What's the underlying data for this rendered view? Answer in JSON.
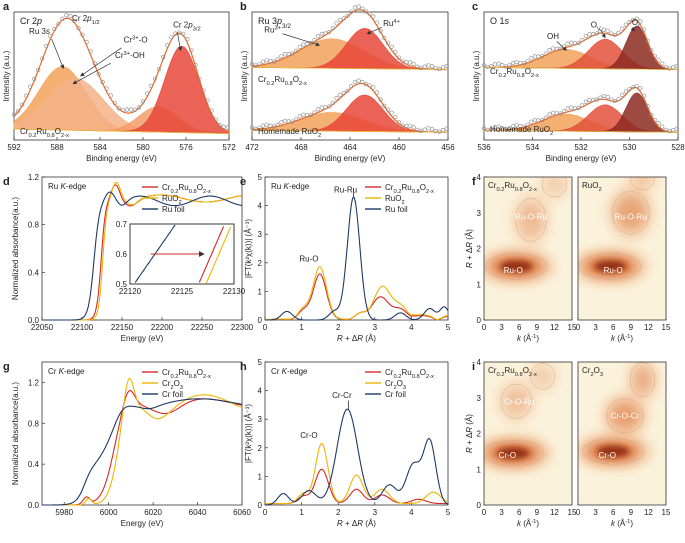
{
  "chart_data": [
    {
      "id": "a",
      "type": "line",
      "title": "Cr 2p",
      "xlabel": "Binding energy (eV)",
      "ylabel": "Intensity (a.u.)",
      "xlim": [
        592,
        572
      ],
      "xticks": [
        "592",
        "588",
        "584",
        "580",
        "576",
        "572"
      ],
      "xtickvals": [
        592,
        588,
        584,
        580,
        576,
        572
      ],
      "ylim": [
        0,
        1
      ],
      "sample": "Cr0.2Ru0.8O2-x",
      "labels": [
        "Ru 3s",
        "Cr 2p1/2",
        "Cr3+-O",
        "Cr3+-OH",
        "Cr 2p3/2"
      ],
      "peaks": [
        {
          "name": "Ru 3s",
          "center": 587.5,
          "height": 0.55,
          "width": 2.2,
          "color": "#f2a25a"
        },
        {
          "name": "Cr 2p1/2",
          "center": 586.3,
          "height": 0.45,
          "width": 2.6,
          "color": "#f4b28a"
        },
        {
          "name": "Cr3+-OH",
          "center": 578.6,
          "height": 0.22,
          "width": 1.8,
          "color": "#f59e6b"
        },
        {
          "name": "Cr 2p3/2",
          "center": 576.4,
          "height": 0.75,
          "width": 1.6,
          "color": "#e8473a"
        }
      ]
    },
    {
      "id": "b",
      "type": "line",
      "title": "Ru 3p3/2",
      "xlabel": "Binding energy (eV)",
      "ylabel": "Intensity (a.u.)",
      "xlim": [
        472,
        456
      ],
      "xticks": [
        "472",
        "468",
        "464",
        "460",
        "456"
      ],
      "xtickvals": [
        472,
        468,
        464,
        460,
        456
      ],
      "labels": [
        "Ru3+",
        "Ru4+"
      ],
      "samples": [
        "Cr0.2Ru0.8O2-x",
        "Homemade RuO2"
      ],
      "peaks": [
        {
          "name": "Ru3+",
          "center": 465.5,
          "height": 0.55,
          "width": 2.6,
          "color": "#f2a25a"
        },
        {
          "name": "Ru4+",
          "center": 462.8,
          "height": 0.75,
          "width": 1.5,
          "color": "#e8473a"
        }
      ]
    },
    {
      "id": "c",
      "type": "line",
      "title": "O 1s",
      "xlabel": "Binding energy (eV)",
      "ylabel": "Intensity (a.u.)",
      "xlim": [
        536,
        528
      ],
      "xticks": [
        "536",
        "534",
        "532",
        "530",
        "528"
      ],
      "xtickvals": [
        536,
        534,
        532,
        530,
        528
      ],
      "labels": [
        "OH",
        "OV",
        "OL"
      ],
      "samples": [
        "Cr0.2Ru0.8O2-x",
        "Homemade RuO2"
      ],
      "peaks": [
        {
          "name": "OH",
          "center": 532.6,
          "height": 0.35,
          "width": 1.0,
          "color": "#f2a25a"
        },
        {
          "name": "OV",
          "center": 531.0,
          "height": 0.55,
          "width": 0.7,
          "color": "#e2513c"
        },
        {
          "name": "OL",
          "center": 529.7,
          "height": 0.8,
          "width": 0.45,
          "color": "#8c2a22"
        }
      ]
    },
    {
      "id": "d",
      "type": "line",
      "title": "Ru K-edge",
      "xlabel": "Energy (eV)",
      "ylabel": "Normalized absorbance(a.u.)",
      "xlim": [
        22050,
        22300
      ],
      "xticks": [
        "22050",
        "22100",
        "22150",
        "22200",
        "22250",
        "22300"
      ],
      "xtickvals": [
        22050,
        22100,
        22150,
        22200,
        22250,
        22300
      ],
      "ylim": [
        0,
        1.2
      ],
      "yticks": [
        "0.0",
        "0.4",
        "0.8",
        "1.2"
      ],
      "ytickvals": [
        0,
        0.4,
        0.8,
        1.2
      ],
      "series": [
        {
          "name": "Cr0.2Ru0.8O2-x",
          "color": "#d42a2a"
        },
        {
          "name": "RuO2",
          "color": "#f0b400"
        },
        {
          "name": "Ru foil",
          "color": "#1f3a66"
        }
      ],
      "inset": {
        "xlim": [
          22120,
          22130
        ],
        "ylim": [
          0.5,
          0.7
        ],
        "xticks": [
          "22120",
          "22125",
          "22130"
        ],
        "xtickvals": [
          22120,
          22125,
          22130
        ],
        "yticks": [
          "0.5",
          "0.6",
          "0.7"
        ],
        "ytickvals": [
          0.5,
          0.6,
          0.7
        ]
      }
    },
    {
      "id": "e",
      "type": "line",
      "title": "Ru K-edge",
      "xlabel": "R + ΔR (Å)",
      "ylabel": "|FT(k²χ(k))| (Å⁻³)",
      "xlim": [
        0,
        5
      ],
      "xticks": [
        "0",
        "1",
        "2",
        "3",
        "4",
        "5"
      ],
      "xtickvals": [
        0,
        1,
        2,
        3,
        4,
        5
      ],
      "ylim": [
        0,
        5
      ],
      "yticks": [
        "0",
        "1",
        "2",
        "3",
        "4",
        "5"
      ],
      "ytickvals": [
        0,
        1,
        2,
        3,
        4,
        5
      ],
      "labels": [
        "Ru-O",
        "Ru-Ru"
      ],
      "series": [
        {
          "name": "Cr0.2Ru0.8O2-x",
          "color": "#d42a2a"
        },
        {
          "name": "RuO2",
          "color": "#f0b400"
        },
        {
          "name": "Ru foil",
          "color": "#1f3a66"
        }
      ]
    },
    {
      "id": "f",
      "type": "heatmap",
      "xlabel": "k (Å⁻¹)",
      "ylabel": "R + ΔR (Å)",
      "xlim": [
        0,
        15
      ],
      "xticks": [
        "0",
        "3",
        "6",
        "9",
        "12",
        "15"
      ],
      "xtickvals": [
        0,
        3,
        6,
        9,
        12,
        15
      ],
      "ylim": [
        0,
        4
      ],
      "yticks": [
        "0",
        "1",
        "2",
        "3",
        "4"
      ],
      "ytickvals": [
        0,
        1,
        2,
        3,
        4
      ],
      "panels": [
        {
          "title": "Cr0.2Ru0.8O2-x",
          "labels": [
            {
              "text": "Ru-O-Ru",
              "k": 8,
              "r": 2.9
            },
            {
              "text": "Ru-O",
              "k": 5,
              "r": 1.4
            }
          ],
          "blobs": [
            {
              "k": 5.5,
              "r": 1.5,
              "sk": 5,
              "sr": 0.3,
              "a": 1.0
            },
            {
              "k": 8,
              "r": 2.8,
              "sk": 2.5,
              "sr": 0.5,
              "a": 0.35
            },
            {
              "k": 12,
              "r": 3.8,
              "sk": 2,
              "sr": 0.3,
              "a": 0.2
            }
          ]
        },
        {
          "title": "RuO2",
          "labels": [
            {
              "text": "Ru-O-Ru",
              "k": 9,
              "r": 2.9
            },
            {
              "text": "Ru-O",
              "k": 6,
              "r": 1.4
            }
          ],
          "blobs": [
            {
              "k": 5.5,
              "r": 1.5,
              "sk": 5,
              "sr": 0.3,
              "a": 1.0
            },
            {
              "k": 9,
              "r": 3.0,
              "sk": 3,
              "sr": 0.5,
              "a": 0.55
            },
            {
              "k": 11,
              "r": 4.0,
              "sk": 2,
              "sr": 0.3,
              "a": 0.25
            }
          ]
        }
      ]
    },
    {
      "id": "g",
      "type": "line",
      "title": "Cr K-edge",
      "xlabel": "Energy (eV)",
      "ylabel": "Normalized absorbance(a.u.)",
      "xlim": [
        5970,
        6060
      ],
      "xticks": [
        "5980",
        "6000",
        "6020",
        "6040",
        "6060"
      ],
      "xtickvals": [
        5980,
        6000,
        6020,
        6040,
        6060
      ],
      "ylim": [
        0,
        1.4
      ],
      "yticks": [
        "0.0",
        "0.4",
        "0.8",
        "1.2"
      ],
      "ytickvals": [
        0,
        0.4,
        0.8,
        1.2
      ],
      "series": [
        {
          "name": "Cr0.2Ru0.8O2-x",
          "color": "#d42a2a"
        },
        {
          "name": "Cr2O3",
          "color": "#f0b400"
        },
        {
          "name": "Cr foil",
          "color": "#1f3a66"
        }
      ]
    },
    {
      "id": "h",
      "type": "line",
      "title": "Cr K-edge",
      "xlabel": "R + ΔR (Å)",
      "ylabel": "|FT(k²χ(k))| (Å⁻³)",
      "xlim": [
        0,
        5
      ],
      "xticks": [
        "0",
        "1",
        "2",
        "3",
        "4",
        "5"
      ],
      "xtickvals": [
        0,
        1,
        2,
        3,
        4,
        5
      ],
      "ylim": [
        0,
        5
      ],
      "yticks": [
        "0",
        "1",
        "2",
        "3",
        "4",
        "5"
      ],
      "ytickvals": [
        0,
        1,
        2,
        3,
        4,
        5
      ],
      "labels": [
        "Cr-O",
        "Cr-Cr"
      ],
      "series": [
        {
          "name": "Cr0.2Ru0.8O2-x",
          "color": "#d42a2a"
        },
        {
          "name": "Cr2O3",
          "color": "#f0b400"
        },
        {
          "name": "Cr foil",
          "color": "#1f3a66"
        }
      ]
    },
    {
      "id": "i",
      "type": "heatmap",
      "xlabel": "k (Å⁻¹)",
      "ylabel": "R + ΔR (Å)",
      "xlim": [
        0,
        15
      ],
      "xticks": [
        "0",
        "3",
        "6",
        "9",
        "12",
        "15"
      ],
      "xtickvals": [
        0,
        3,
        6,
        9,
        12,
        15
      ],
      "ylim": [
        0,
        4
      ],
      "yticks": [
        "0",
        "1",
        "2",
        "3",
        "4"
      ],
      "ytickvals": [
        0,
        1,
        2,
        3,
        4
      ],
      "panels": [
        {
          "title": "Cr0.2Ru0.8O2-x",
          "labels": [
            {
              "text": "Cr-O-Ru",
              "k": 6,
              "r": 2.9
            },
            {
              "text": "Cr-O",
              "k": 4,
              "r": 1.4
            }
          ],
          "blobs": [
            {
              "k": 5,
              "r": 1.45,
              "sk": 5,
              "sr": 0.3,
              "a": 1.0
            },
            {
              "k": 5.5,
              "r": 2.9,
              "sk": 2.5,
              "sr": 0.4,
              "a": 0.3
            },
            {
              "k": 10,
              "r": 3.6,
              "sk": 2,
              "sr": 0.3,
              "a": 0.2
            }
          ]
        },
        {
          "title": "Cr2O3",
          "labels": [
            {
              "text": "Cr-O-Cr",
              "k": 8,
              "r": 2.5
            },
            {
              "text": "Cr-O",
              "k": 5,
              "r": 1.4
            }
          ],
          "blobs": [
            {
              "k": 6,
              "r": 1.5,
              "sk": 5,
              "sr": 0.3,
              "a": 1.0
            },
            {
              "k": 8,
              "r": 2.5,
              "sk": 3,
              "sr": 0.4,
              "a": 0.6
            },
            {
              "k": 11,
              "r": 3.5,
              "sk": 2,
              "sr": 0.4,
              "a": 0.45
            }
          ]
        }
      ]
    }
  ],
  "panel_letters": [
    "a",
    "b",
    "c",
    "d",
    "e",
    "f",
    "g",
    "h",
    "i"
  ]
}
